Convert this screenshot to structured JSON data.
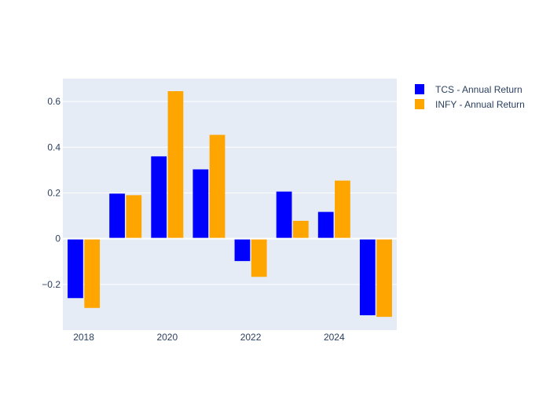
{
  "chart_data": {
    "type": "bar",
    "x": [
      2018,
      2019,
      2020,
      2021,
      2022,
      2023,
      2024,
      2025
    ],
    "series": [
      {
        "name": "TCS - Annual Return",
        "color": "#0000ff",
        "values": [
          -0.26,
          0.197,
          0.36,
          0.303,
          -0.098,
          0.206,
          0.117,
          -0.335
        ]
      },
      {
        "name": "INFY - Annual Return",
        "color": "#ffa500",
        "values": [
          -0.303,
          0.19,
          0.645,
          0.454,
          -0.167,
          0.078,
          0.254,
          -0.342
        ]
      }
    ],
    "x_ticks": [
      "2018",
      "2020",
      "2022",
      "2024"
    ],
    "y_ticks": [
      "−0.2",
      "0",
      "0.2",
      "0.4",
      "0.6"
    ],
    "y_tick_values": [
      -0.2,
      0,
      0.2,
      0.4,
      0.6
    ],
    "ylim": [
      -0.4,
      0.7
    ],
    "grid": true,
    "legend_position": "right",
    "plot_background": "#e5ecf6"
  }
}
